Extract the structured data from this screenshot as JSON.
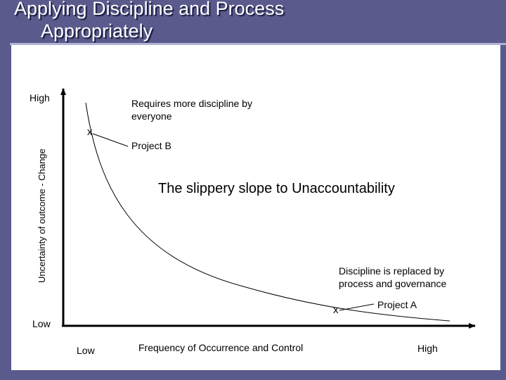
{
  "slide": {
    "title_line1": "Applying Discipline and Process",
    "title_line2": "Appropriately",
    "background_color": "#5a5a8c",
    "panel_color": "#ffffff"
  },
  "diagram": {
    "y_axis": {
      "label": "Uncertainty of outcome - Change",
      "high_label": "High",
      "low_label": "Low"
    },
    "x_axis": {
      "label": "Frequency of Occurrence and Control",
      "low_label": "Low",
      "high_label": "High"
    },
    "curve_label": "The slippery slope to Unaccountability",
    "top_note": "Requires more discipline by everyone",
    "bottom_note": "Discipline is replaced by process and governance",
    "points": [
      {
        "marker": "x",
        "label": "Project B"
      },
      {
        "marker": "x",
        "label": "Project A"
      }
    ]
  }
}
